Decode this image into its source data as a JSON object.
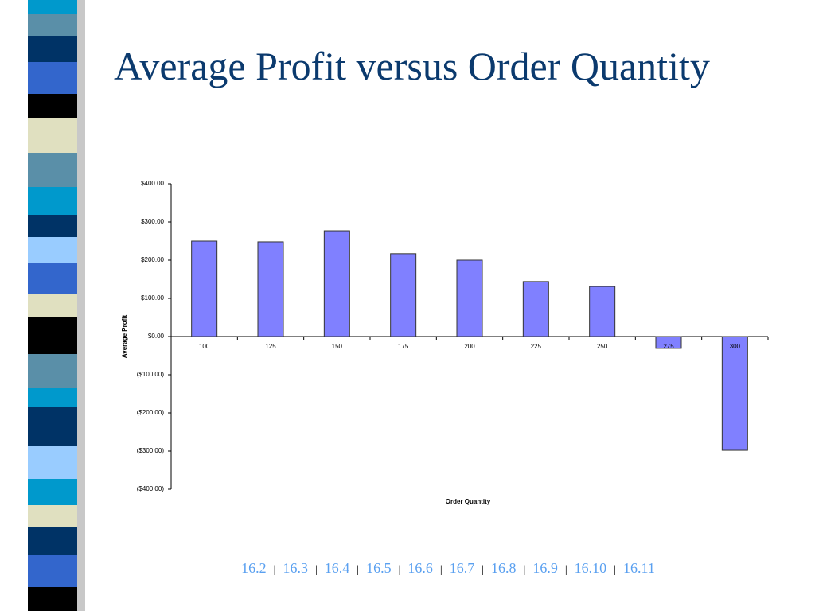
{
  "chart_data": {
    "type": "bar",
    "title": "Average Profit versus Order Quantity",
    "x_label": "Order Quantity",
    "y_label": "Average Profit",
    "categories": [
      "100",
      "125",
      "150",
      "175",
      "200",
      "225",
      "250",
      "275",
      "300"
    ],
    "values": [
      250,
      248,
      277,
      217,
      200,
      144,
      131,
      -31,
      -298
    ],
    "color": "#8080ff",
    "ylim": [
      -400,
      400
    ],
    "yticks": [
      {
        "value": 400,
        "label": "$400.00"
      },
      {
        "value": 300,
        "label": "$300.00"
      },
      {
        "value": 200,
        "label": "$200.00"
      },
      {
        "value": 100,
        "label": "$100.00"
      },
      {
        "value": 0,
        "label": "$0.00"
      },
      {
        "value": -100,
        "label": "($100.00)"
      },
      {
        "value": -200,
        "label": "($200.00)"
      },
      {
        "value": -300,
        "label": "($300.00)"
      },
      {
        "value": -400,
        "label": "($400.00)"
      }
    ],
    "grid": false
  },
  "nav": {
    "items": [
      "16.2",
      "16.3",
      "16.4",
      "16.5",
      "16.6",
      "16.7",
      "16.8",
      "16.9",
      "16.10",
      "16.11"
    ],
    "separator": "|"
  }
}
